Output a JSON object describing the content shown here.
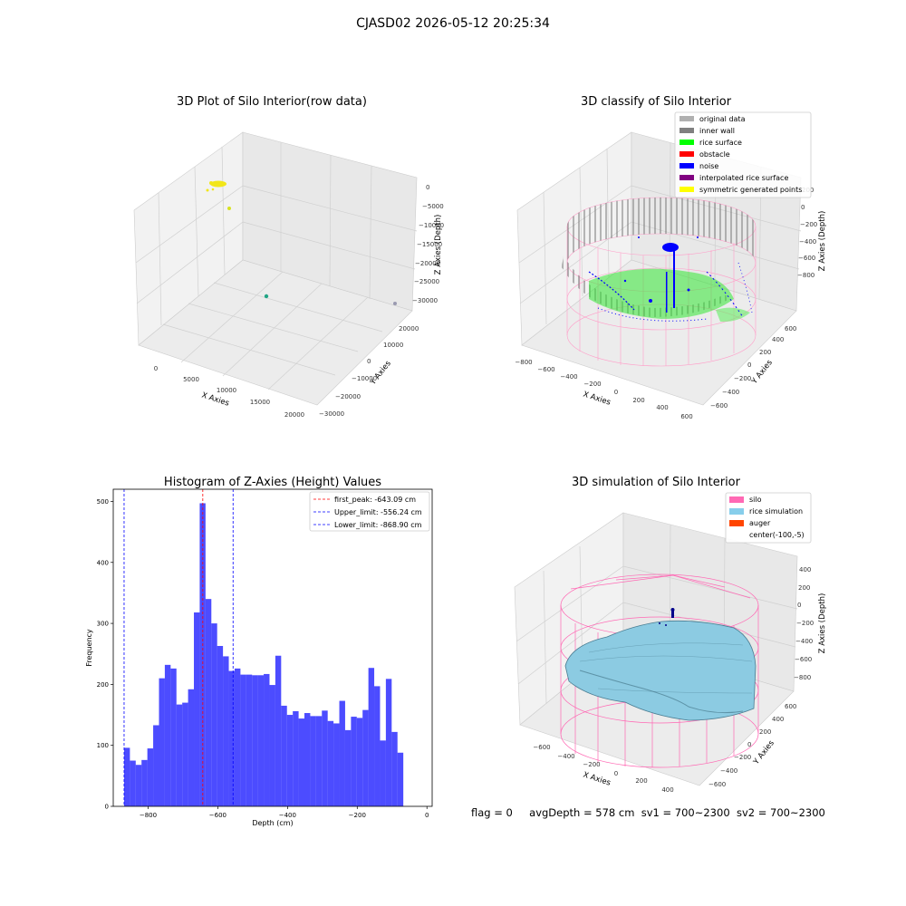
{
  "figure": {
    "suptitle": "CJASD02 2026-05-12 20:25:34",
    "footer": {
      "flag": "flag = 0",
      "avg": "avgDepth = 578 cm",
      "sv1": "sv1 = 700~2300",
      "sv2": "sv2 = 700~2300"
    }
  },
  "chart_data": [
    {
      "type": "scatter3d",
      "title": "3D Plot of Silo Interior(row data)",
      "xlabel": "X Axies",
      "ylabel": "Y Axies",
      "zlabel": "Z Axies (Depth)",
      "xticks": [
        "0",
        "5000",
        "10000",
        "15000",
        "20000"
      ],
      "yticks": [
        "−30000",
        "−20000",
        "−10000",
        "0",
        "10000",
        "20000"
      ],
      "zticks": [
        "0",
        "−5000",
        "−10000",
        "−15000",
        "−20000",
        "−25000",
        "−30000"
      ],
      "grid": true
    },
    {
      "type": "scatter3d",
      "title": "3D classify of Silo Interior",
      "xlabel": "X Axies",
      "ylabel": "Y Axies",
      "zlabel": "Z Axies (Depth)",
      "xticks": [
        "−800",
        "−600",
        "−400",
        "−200",
        "0",
        "200",
        "400",
        "600"
      ],
      "yticks": [
        "−600",
        "−400",
        "−200",
        "0",
        "200",
        "400",
        "600"
      ],
      "zticks": [
        "200",
        "0",
        "−200",
        "−400",
        "−600",
        "−800"
      ],
      "legend_position": "top-right",
      "legend": [
        {
          "name": "original data",
          "color": "#b0b0b0"
        },
        {
          "name": "inner wall",
          "color": "#808080"
        },
        {
          "name": "rice surface",
          "color": "#00ff00"
        },
        {
          "name": "obstacle",
          "color": "#ff0000"
        },
        {
          "name": "noise",
          "color": "#0000ff"
        },
        {
          "name": "interpolated rice surface",
          "color": "#800080"
        },
        {
          "name": "symmetric generated points",
          "color": "#ffff00"
        }
      ],
      "grid": true
    },
    {
      "type": "bar",
      "title": "Histogram of Z-Axies (Height) Values",
      "xlabel": "Depth (cm)",
      "ylabel": "Frequency",
      "xlim": [
        -900,
        15
      ],
      "ylim": [
        0,
        520
      ],
      "xticks": [
        -800,
        -600,
        -400,
        -200,
        0
      ],
      "xtick_labels": [
        "−800",
        "−600",
        "−400",
        "−200",
        "0"
      ],
      "yticks": [
        0,
        100,
        200,
        300,
        400,
        500
      ],
      "bin_start": -868.9,
      "bin_width": 16.69,
      "values": [
        96,
        75,
        68,
        76,
        95,
        133,
        210,
        232,
        226,
        167,
        170,
        192,
        318,
        497,
        340,
        300,
        263,
        246,
        222,
        226,
        216,
        216,
        215,
        215,
        217,
        199,
        247,
        165,
        150,
        156,
        144,
        153,
        148,
        148,
        157,
        140,
        136,
        173,
        125,
        147,
        145,
        158,
        227,
        197,
        108,
        209,
        122,
        88
      ],
      "color": "#0000ff",
      "vlines": [
        {
          "x": -643.09,
          "color": "#ff0000",
          "name": "first_peak: -643.09 cm"
        },
        {
          "x": -556.24,
          "color": "#0000ff",
          "name": "Upper_limit: -556.24 cm"
        },
        {
          "x": -868.9,
          "color": "#0000ff",
          "name": "Lower_limit: -868.90 cm"
        }
      ],
      "legend_position": "top-right"
    },
    {
      "type": "surface3d",
      "title": "3D simulation of Silo Interior",
      "xlabel": "X Axies",
      "ylabel": "Y Axies",
      "zlabel": "Z Axies (Depth)",
      "xticks": [
        "−600",
        "−400",
        "−200",
        "0",
        "200",
        "400"
      ],
      "yticks": [
        "−600",
        "−400",
        "−200",
        "0",
        "200",
        "400",
        "600"
      ],
      "zticks": [
        "400",
        "200",
        "0",
        "−200",
        "−400",
        "−600",
        "−800"
      ],
      "legend_position": "top-right",
      "legend": [
        {
          "name": "silo",
          "color": "#ff69b4"
        },
        {
          "name": "rice simulation",
          "color": "#87ceeb"
        },
        {
          "name": "auger",
          "color": "#ff4500"
        },
        {
          "name": "center(-100,-5)",
          "color": "none"
        }
      ],
      "grid": true
    }
  ]
}
